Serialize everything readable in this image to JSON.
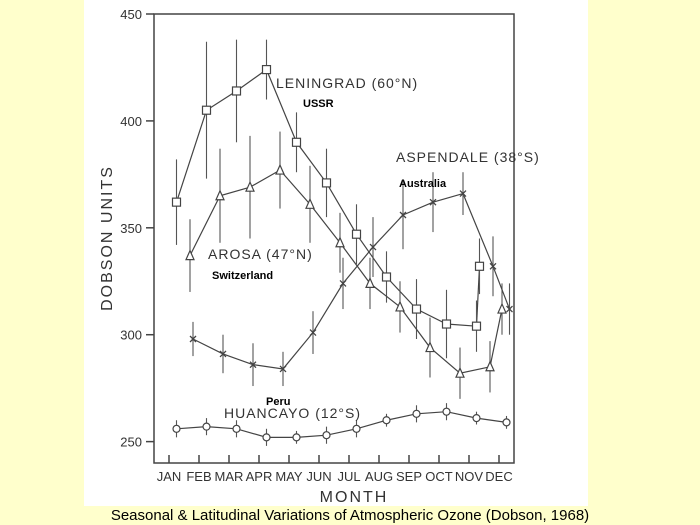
{
  "caption": "Seasonal & Latitudinal Variations of Atmospheric Ozone (Dobson, 1968)",
  "chart_data": {
    "type": "line",
    "title": "",
    "xlabel": "MONTH",
    "ylabel": "DOBSON UNITS",
    "categories": [
      "JAN",
      "FEB",
      "MAR",
      "APR",
      "MAY",
      "JUN",
      "JUL",
      "AUG",
      "SEP",
      "OCT",
      "NOV",
      "DEC"
    ],
    "ylim": [
      240,
      450
    ],
    "yticks": [
      250,
      300,
      350,
      400,
      450
    ],
    "grid": false,
    "series": [
      {
        "name": "LENINGRAD (60°N)",
        "region": "USSR",
        "marker": "square",
        "x": [
          0.75,
          1.75,
          2.75,
          3.75,
          4.75,
          5.75,
          6.75,
          7.75,
          8.75,
          9.75,
          10.75
        ],
        "values": [
          362,
          405,
          414,
          424,
          390,
          371,
          347,
          327,
          312,
          305,
          304
        ],
        "err": [
          20,
          32,
          24,
          14,
          14,
          16,
          14,
          12,
          14,
          16,
          12
        ],
        "tail": {
          "x": 10.85,
          "value": 332,
          "err": 13
        }
      },
      {
        "name": "AROSA (47°N)",
        "region": "Switzerland",
        "marker": "triangle",
        "x": [
          1.2,
          2.2,
          3.2,
          4.2,
          5.2,
          6.2,
          7.2,
          8.2,
          9.2,
          10.2,
          11.2
        ],
        "values": [
          337,
          365,
          369,
          377,
          361,
          343,
          324,
          313,
          294,
          282,
          285
        ],
        "err": [
          17,
          22,
          24,
          18,
          18,
          14,
          12,
          12,
          14,
          12,
          12
        ],
        "tail": {
          "x": 11.6,
          "value": 312,
          "err": 12
        }
      },
      {
        "name": "ASPENDALE (38°S)",
        "region": "Australia",
        "marker": "x",
        "x": [
          1.3,
          2.3,
          3.3,
          4.3,
          5.3,
          6.3,
          7.3,
          8.3,
          9.3,
          10.3,
          11.3
        ],
        "values": [
          298,
          291,
          286,
          284,
          301,
          324,
          341,
          356,
          362,
          366,
          332
        ],
        "err": [
          8,
          9,
          10,
          8,
          10,
          12,
          14,
          16,
          14,
          10,
          14
        ],
        "tail": {
          "x": 11.85,
          "value": 312,
          "err": 12
        }
      },
      {
        "name": "HUANCAYO (12°S)",
        "region": "Peru",
        "marker": "circle",
        "x": [
          0.75,
          1.75,
          2.75,
          3.75,
          4.75,
          5.75,
          6.75,
          7.75,
          8.75,
          9.75,
          10.75,
          11.75
        ],
        "values": [
          256,
          257,
          256,
          252,
          252,
          253,
          256,
          260,
          263,
          264,
          261,
          259
        ],
        "err": [
          4,
          4,
          4,
          4,
          3,
          4,
          4,
          3,
          4,
          4,
          3,
          3
        ]
      }
    ],
    "labels": [
      {
        "series": 0,
        "text": "LENINGRAD (60°N)",
        "region": "USSR"
      },
      {
        "series": 1,
        "text": "AROSA (47°N)",
        "region": "Switzerland"
      },
      {
        "series": 2,
        "text": "ASPENDALE (38°S)",
        "region": "Australia"
      },
      {
        "series": 3,
        "text": "HUANCAYO (12°S)",
        "region": "Peru"
      }
    ]
  }
}
